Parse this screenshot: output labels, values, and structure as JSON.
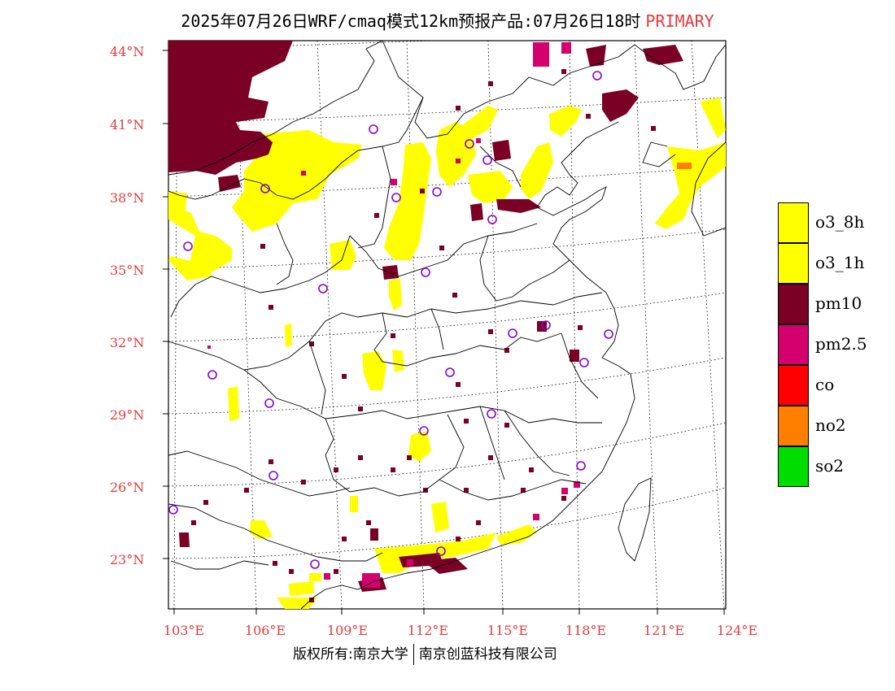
{
  "header": {
    "title": "2025年07月26日WRF/cmaq模式12km预报产品:07月26日18时",
    "tag": "PRIMARY"
  },
  "map": {
    "lat_labels": [
      "44°N",
      "41°N",
      "38°N",
      "35°N",
      "32°N",
      "29°N",
      "26°N",
      "23°N"
    ],
    "lon_labels": [
      "103°E",
      "106°E",
      "109°E",
      "112°E",
      "115°E",
      "118°E",
      "121°E",
      "124°E"
    ],
    "colors": {
      "o3_8h": "#ffff00",
      "pm10": "#7a0026",
      "pm25": "#d4006e",
      "no2": "#ff7f00",
      "station": "#8800dd"
    }
  },
  "legend": {
    "items": [
      {
        "label": "o3_8h",
        "color": "#ffff00"
      },
      {
        "label": "o3_1h",
        "color": "#ffff00"
      },
      {
        "label": "pm10",
        "color": "#7a0026"
      },
      {
        "label": "pm2.5",
        "color": "#d4006e"
      },
      {
        "label": "co",
        "color": "#ff0000"
      },
      {
        "label": "no2",
        "color": "#ff7f00"
      },
      {
        "label": "so2",
        "color": "#00dd00"
      }
    ]
  },
  "footer": {
    "left": "版权所有:南京大学",
    "right": "南京创蓝科技有限公司"
  }
}
